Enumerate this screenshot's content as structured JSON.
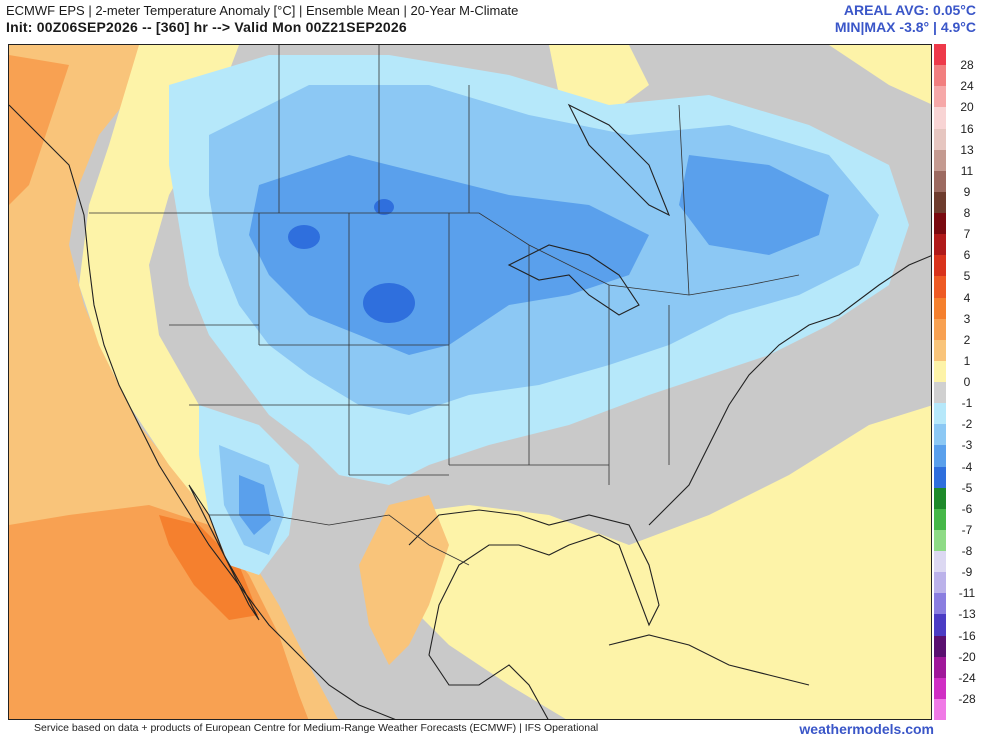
{
  "header": {
    "line1": "ECMWF EPS | 2-meter Temperature Anomaly [°C] | Ensemble Mean | 20-Year M-Climate",
    "line2": "Init: 00Z06SEP2026 -- [360] hr --> Valid Mon 00Z21SEP2026",
    "areal_avg": "AREAL AVG: 0.05°C",
    "min_max": "MIN|MAX -3.8° | 4.9°C"
  },
  "colorbar": {
    "levels": [
      {
        "label": "28",
        "color": "#f27f7f"
      },
      {
        "label": "24",
        "color": "#f6a8a8"
      },
      {
        "label": "20",
        "color": "#f8d4d4"
      },
      {
        "label": "16",
        "color": "#e6c6c0"
      },
      {
        "label": "13",
        "color": "#c49a90"
      },
      {
        "label": "11",
        "color": "#9c6a60"
      },
      {
        "label": "9",
        "color": "#6e3c2e"
      },
      {
        "label": "8",
        "color": "#7a0a10"
      },
      {
        "label": "7",
        "color": "#b01a1a"
      },
      {
        "label": "6",
        "color": "#d9331c"
      },
      {
        "label": "5",
        "color": "#ee5a24"
      },
      {
        "label": "4",
        "color": "#f5802e"
      },
      {
        "label": "3",
        "color": "#f8a152"
      },
      {
        "label": "2",
        "color": "#f9c47a"
      },
      {
        "label": "1",
        "color": "#fdf3a8"
      },
      {
        "label": "0",
        "color": "#d0d0d0"
      },
      {
        "label": "-1",
        "color": "#b6e8fa"
      },
      {
        "label": "-2",
        "color": "#8cc8f4"
      },
      {
        "label": "-3",
        "color": "#5aa0ec"
      },
      {
        "label": "-4",
        "color": "#2f6fdd"
      },
      {
        "label": "-5",
        "color": "#1e8a2a"
      },
      {
        "label": "-6",
        "color": "#46b848"
      },
      {
        "label": "-7",
        "color": "#8edb86"
      },
      {
        "label": "-8",
        "color": "#dcd8f2"
      },
      {
        "label": "-9",
        "color": "#bbb2ea"
      },
      {
        "label": "-11",
        "color": "#8a7ee0"
      },
      {
        "label": "-13",
        "color": "#4b3cc4"
      },
      {
        "label": "-16",
        "color": "#5a1070"
      },
      {
        "label": "-20",
        "color": "#a0189a"
      },
      {
        "label": "-24",
        "color": "#d02fc4"
      },
      {
        "label": "-28",
        "color": "#f07ae6"
      }
    ],
    "extra_top_color": "#ee3a4a"
  },
  "footer": {
    "attribution": "Service based on data + products of European Centre for Medium-Range Weather Forecasts (ECMWF) | IFS Operational",
    "brand": "weathermodels.com"
  }
}
